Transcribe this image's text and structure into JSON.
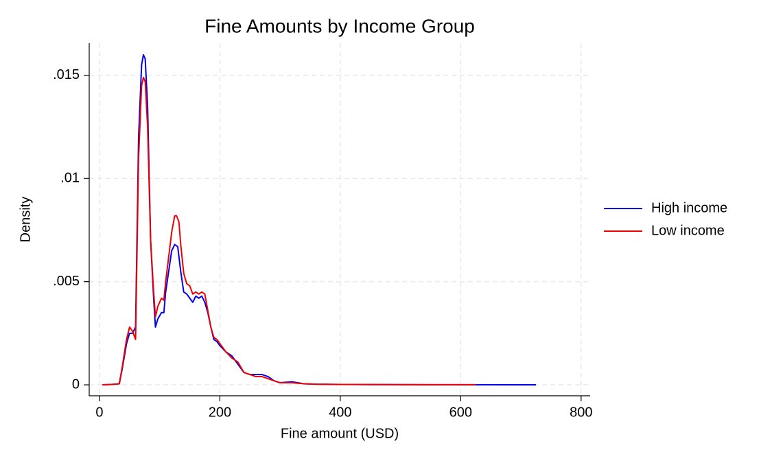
{
  "chart_data": {
    "type": "line",
    "title": "Fine Amounts by Income Group",
    "xlabel": "Fine amount (USD)",
    "ylabel": "Density",
    "xlim": [
      -17,
      815
    ],
    "ylim": [
      -0.00053,
      0.01656
    ],
    "xticks": [
      0,
      200,
      400,
      600,
      800
    ],
    "yticks": [
      0,
      {
        "value": 0.005,
        "label": ".005"
      },
      {
        "value": 0.01,
        "label": ".01"
      },
      {
        "value": 0.015,
        "label": ".015"
      }
    ],
    "grid": true,
    "legend": "right",
    "series": [
      {
        "name": "High income",
        "color": "#0000ee",
        "x": [
          5,
          20,
          33,
          38,
          45,
          50,
          55,
          60,
          65,
          70,
          73,
          76,
          80,
          85,
          90,
          93,
          97,
          103,
          107,
          110,
          115,
          120,
          125,
          130,
          135,
          140,
          145,
          150,
          155,
          160,
          165,
          170,
          175,
          180,
          185,
          190,
          195,
          200,
          210,
          220,
          230,
          240,
          250,
          260,
          270,
          280,
          290,
          300,
          320,
          340,
          360,
          400,
          450,
          500,
          600,
          700,
          725
        ],
        "values": [
          0,
          2e-05,
          5e-05,
          0.0008,
          0.002,
          0.0025,
          0.0025,
          0.0028,
          0.012,
          0.0155,
          0.016,
          0.0158,
          0.0135,
          0.007,
          0.0042,
          0.0028,
          0.0032,
          0.0035,
          0.0035,
          0.0045,
          0.0055,
          0.0065,
          0.0068,
          0.0067,
          0.0055,
          0.0045,
          0.0044,
          0.0042,
          0.004,
          0.0043,
          0.0042,
          0.0043,
          0.004,
          0.0035,
          0.0028,
          0.0022,
          0.0021,
          0.0019,
          0.0016,
          0.0014,
          0.001,
          0.0006,
          0.0005,
          0.0005,
          0.0005,
          0.0004,
          0.0002,
          0.0001,
          0.00015,
          5e-05,
          3e-05,
          2e-05,
          1e-05,
          1e-05,
          5e-06,
          3e-06,
          3e-06
        ]
      },
      {
        "name": "Low income",
        "color": "#ee0000",
        "x": [
          5,
          20,
          33,
          38,
          45,
          50,
          55,
          60,
          65,
          70,
          73,
          76,
          80,
          85,
          90,
          93,
          97,
          103,
          107,
          110,
          115,
          120,
          125,
          128,
          132,
          135,
          140,
          145,
          150,
          155,
          160,
          165,
          170,
          175,
          180,
          185,
          190,
          195,
          200,
          210,
          220,
          230,
          240,
          250,
          260,
          270,
          280,
          290,
          300,
          320,
          340,
          360,
          400,
          450,
          500,
          600,
          625
        ],
        "values": [
          0,
          2e-05,
          5e-05,
          0.0009,
          0.0022,
          0.0028,
          0.0026,
          0.0022,
          0.011,
          0.0145,
          0.0149,
          0.0147,
          0.0125,
          0.007,
          0.0045,
          0.0033,
          0.0038,
          0.0042,
          0.0041,
          0.005,
          0.0062,
          0.0074,
          0.0082,
          0.0082,
          0.0079,
          0.0068,
          0.0054,
          0.0049,
          0.0048,
          0.0044,
          0.0045,
          0.0044,
          0.0045,
          0.0044,
          0.0036,
          0.0028,
          0.0023,
          0.0022,
          0.002,
          0.0016,
          0.0013,
          0.0011,
          0.0006,
          0.0005,
          0.0004,
          0.0004,
          0.0003,
          0.0002,
          0.0001,
          0.0001,
          5e-05,
          3e-05,
          2e-05,
          2e-05,
          1e-05,
          5e-06,
          5e-06
        ]
      }
    ]
  }
}
